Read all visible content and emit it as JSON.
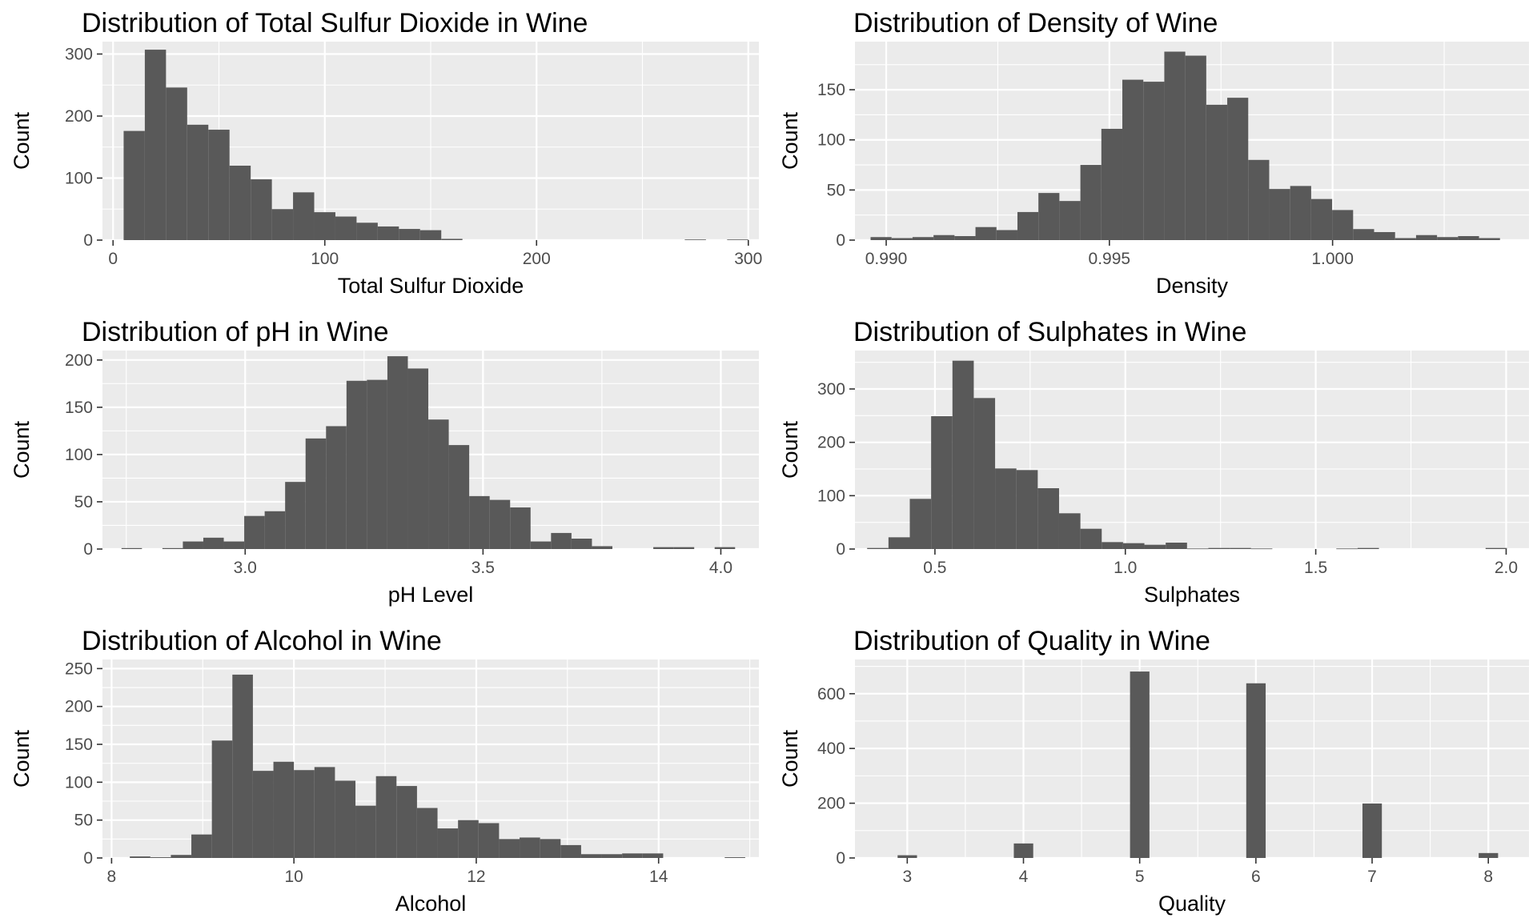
{
  "chart_data": [
    {
      "type": "bar",
      "title": "Distribution of Total Sulfur Dioxide in Wine",
      "xlabel": "Total Sulfur Dioxide",
      "ylabel": "Count",
      "xlim": [
        -5,
        305
      ],
      "ylim": [
        0,
        320
      ],
      "x_ticks": [
        0,
        100,
        200,
        300
      ],
      "y_ticks": [
        0,
        100,
        200,
        300
      ],
      "x_tick_labels": [
        "0",
        "100",
        "200",
        "300"
      ],
      "y_tick_labels": [
        "0",
        "100",
        "200",
        "300"
      ],
      "grid": true,
      "bin_width": 10,
      "bins_start": [
        5,
        15,
        25,
        35,
        45,
        55,
        65,
        75,
        85,
        95,
        105,
        115,
        125,
        135,
        145,
        155,
        270,
        290
      ],
      "values": [
        176,
        307,
        246,
        186,
        178,
        120,
        98,
        50,
        77,
        45,
        38,
        28,
        22,
        18,
        16,
        2,
        1,
        1
      ]
    },
    {
      "type": "bar",
      "title": "Distribution of Density of Wine",
      "xlabel": "Density",
      "ylabel": "Count",
      "xlim": [
        0.9893,
        1.0044
      ],
      "ylim": [
        0,
        198
      ],
      "x_ticks": [
        0.99,
        0.995,
        1.0
      ],
      "y_ticks": [
        0,
        50,
        100,
        150
      ],
      "x_tick_labels": [
        "0.990",
        "0.995",
        "1.000"
      ],
      "y_tick_labels": [
        "0",
        "50",
        "100",
        "150"
      ],
      "grid": true,
      "bin_width": 0.00047,
      "bins_start": [
        0.98965,
        0.99012,
        0.99059,
        0.99106,
        0.99153,
        0.992,
        0.99247,
        0.99294,
        0.99341,
        0.99388,
        0.99435,
        0.99482,
        0.99529,
        0.99576,
        0.99623,
        0.9967,
        0.99717,
        0.99764,
        0.99811,
        0.99858,
        0.99905,
        0.99952,
        0.99999,
        1.00046,
        1.00093,
        1.0014,
        1.00187,
        1.00234,
        1.00281,
        1.00328
      ],
      "values": [
        3,
        2,
        3,
        5,
        4,
        13,
        10,
        28,
        47,
        39,
        75,
        111,
        160,
        158,
        188,
        184,
        135,
        142,
        80,
        51,
        54,
        41,
        30,
        11,
        8,
        2,
        5,
        3,
        4,
        2
      ]
    },
    {
      "type": "bar",
      "title": "Distribution of pH in Wine",
      "xlabel": "pH Level",
      "ylabel": "Count",
      "xlim": [
        2.7,
        4.08
      ],
      "ylim": [
        0,
        210
      ],
      "x_ticks": [
        3.0,
        3.5,
        4.0
      ],
      "y_ticks": [
        0,
        50,
        100,
        150,
        200
      ],
      "x_tick_labels": [
        "3.0",
        "3.5",
        "4.0"
      ],
      "y_tick_labels": [
        "0",
        "50",
        "100",
        "150",
        "200"
      ],
      "grid": true,
      "bin_width": 0.043,
      "bins_start": [
        2.74,
        2.783,
        2.826,
        2.869,
        2.912,
        2.955,
        2.998,
        3.041,
        3.084,
        3.127,
        3.17,
        3.213,
        3.256,
        3.299,
        3.342,
        3.385,
        3.428,
        3.471,
        3.514,
        3.557,
        3.6,
        3.643,
        3.686,
        3.729,
        3.772,
        3.815,
        3.858,
        3.901,
        3.944,
        3.987
      ],
      "values": [
        1,
        0,
        1,
        8,
        12,
        8,
        35,
        40,
        71,
        117,
        130,
        178,
        179,
        204,
        191,
        137,
        110,
        56,
        52,
        44,
        8,
        17,
        11,
        3,
        0,
        0,
        2,
        2,
        0,
        2
      ]
    },
    {
      "type": "bar",
      "title": "Distribution of Sulphates in Wine",
      "xlabel": "Sulphates",
      "ylabel": "Count",
      "xlim": [
        0.29,
        2.06
      ],
      "ylim": [
        0,
        372
      ],
      "x_ticks": [
        0.5,
        1.0,
        1.5,
        2.0
      ],
      "y_ticks": [
        0,
        100,
        200,
        300
      ],
      "x_tick_labels": [
        "0.5",
        "1.0",
        "1.5",
        "2.0"
      ],
      "y_tick_labels": [
        "0",
        "100",
        "200",
        "300"
      ],
      "grid": true,
      "bin_width": 0.056,
      "bins_start": [
        0.322,
        0.378,
        0.434,
        0.49,
        0.546,
        0.602,
        0.658,
        0.714,
        0.77,
        0.826,
        0.882,
        0.938,
        0.994,
        1.05,
        1.106,
        1.162,
        1.218,
        1.274,
        1.33,
        1.386,
        1.442,
        1.498,
        1.554,
        1.61,
        1.666,
        1.722,
        1.778,
        1.834,
        1.89,
        1.946
      ],
      "values": [
        2,
        22,
        94,
        249,
        353,
        283,
        151,
        148,
        114,
        67,
        38,
        13,
        11,
        8,
        12,
        1,
        2,
        2,
        1,
        0,
        0,
        0,
        1,
        2,
        0,
        0,
        0,
        0,
        0,
        2
      ]
    },
    {
      "type": "bar",
      "title": "Distribution of Alcohol in Wine",
      "xlabel": "Alcohol",
      "ylabel": "Count",
      "xlim": [
        7.9,
        15.1
      ],
      "ylim": [
        0,
        262
      ],
      "x_ticks": [
        8,
        10,
        12,
        14
      ],
      "y_ticks": [
        0,
        50,
        100,
        150,
        200,
        250
      ],
      "x_tick_labels": [
        "8",
        "10",
        "12",
        "14"
      ],
      "y_tick_labels": [
        "0",
        "50",
        "100",
        "150",
        "200",
        "250"
      ],
      "grid": true,
      "bin_width": 0.225,
      "bins_start": [
        8.2,
        8.425,
        8.65,
        8.875,
        9.1,
        9.325,
        9.55,
        9.775,
        10.0,
        10.225,
        10.45,
        10.675,
        10.9,
        11.125,
        11.35,
        11.575,
        11.8,
        12.025,
        12.25,
        12.475,
        12.7,
        12.925,
        13.15,
        13.375,
        13.6,
        13.825,
        14.725
      ],
      "values": [
        2,
        1,
        4,
        31,
        155,
        242,
        115,
        127,
        116,
        120,
        102,
        69,
        108,
        95,
        66,
        39,
        50,
        46,
        25,
        27,
        25,
        17,
        5,
        5,
        6,
        6,
        1
      ]
    },
    {
      "type": "bar",
      "title": "Distribution of Quality in Wine",
      "xlabel": "Quality",
      "ylabel": "Count",
      "xlim": [
        2.55,
        8.35
      ],
      "ylim": [
        0,
        725
      ],
      "x_ticks": [
        3,
        4,
        5,
        6,
        7,
        8
      ],
      "y_ticks": [
        0,
        200,
        400,
        600
      ],
      "x_tick_labels": [
        "3",
        "4",
        "5",
        "6",
        "7",
        "8"
      ],
      "y_tick_labels": [
        "0",
        "200",
        "400",
        "600"
      ],
      "grid": true,
      "bin_width": 0.167,
      "bins_start": [
        2.917,
        3.917,
        4.917,
        5.917,
        6.917,
        7.917
      ],
      "values": [
        10,
        53,
        681,
        638,
        199,
        18
      ]
    }
  ]
}
